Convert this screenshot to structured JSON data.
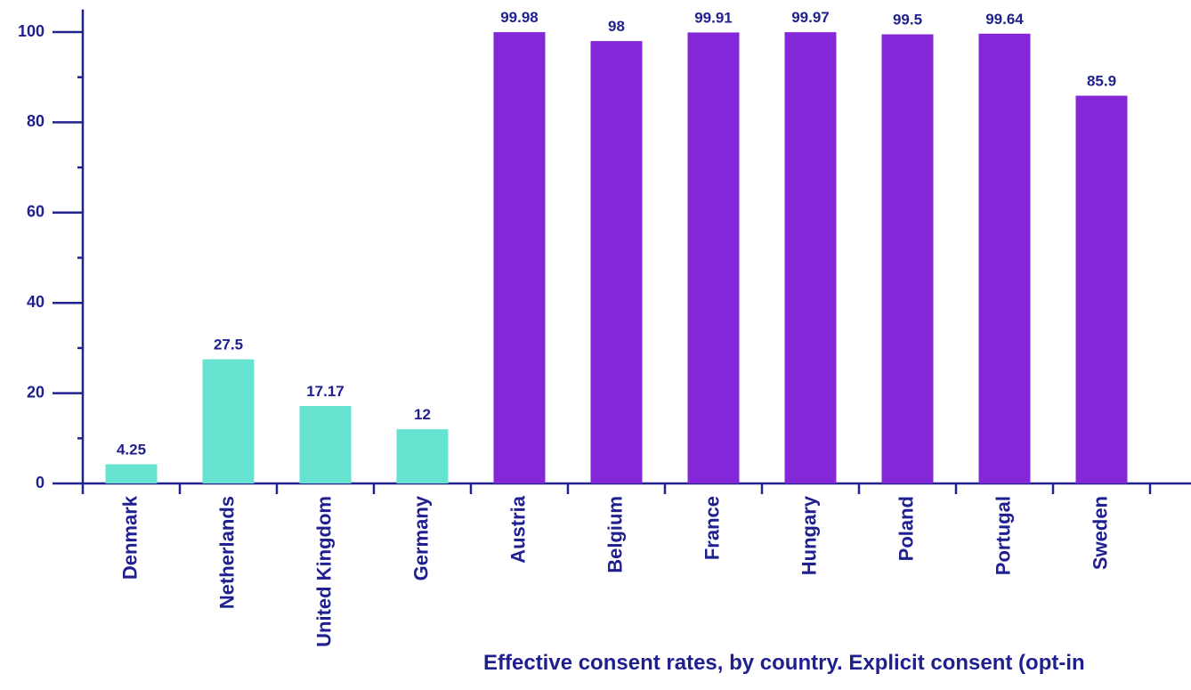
{
  "chart_data": {
    "type": "bar",
    "title": "Effective consent rates, by country.  Explicit consent (opt-in",
    "categories": [
      "Denmark",
      "Netherlands",
      "United Kingdom",
      "Germany",
      "Austria",
      "Belgium",
      "France",
      "Hungary",
      "Poland",
      "Portugal",
      "Sweden"
    ],
    "values": [
      4.25,
      27.5,
      17.17,
      12,
      99.98,
      98,
      99.91,
      99.97,
      99.5,
      99.64,
      85.9
    ],
    "colors": [
      "#66e3d0",
      "#66e3d0",
      "#66e3d0",
      "#66e3d0",
      "#8427d8",
      "#8427d8",
      "#8427d8",
      "#8427d8",
      "#8427d8",
      "#8427d8",
      "#8427d8"
    ],
    "ylim": [
      0,
      105
    ],
    "yticks": [
      0,
      20,
      40,
      60,
      80,
      100
    ],
    "minor_yticks": [
      10,
      30,
      50,
      70,
      90
    ]
  }
}
